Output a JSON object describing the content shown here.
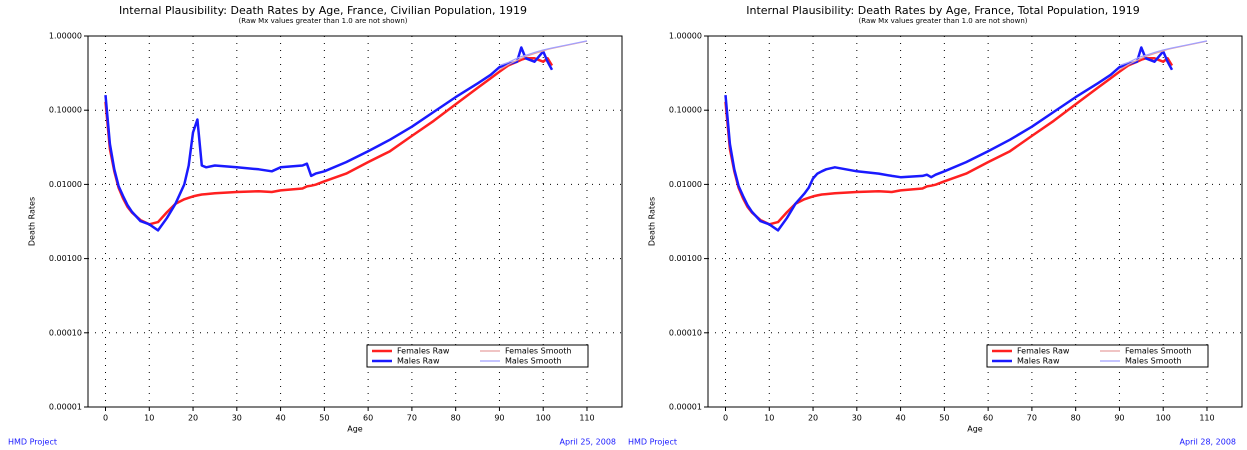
{
  "chart_data": [
    {
      "type": "line",
      "title": "Internal Plausibility: Death Rates by Age, France, Civilian Population, 1919",
      "subtitle": "(Raw Mx values greater than 1.0 are not shown)",
      "xlabel": "Age",
      "ylabel": "Death Rates",
      "footer_left": "HMD Project",
      "footer_right": "April 25, 2008",
      "log_y": true,
      "grid": true,
      "legend": "lower right",
      "xlim": [
        -4,
        118
      ],
      "xticks": [
        0,
        10,
        20,
        30,
        40,
        50,
        60,
        70,
        80,
        90,
        100,
        110
      ],
      "ylim": [
        1e-05,
        1
      ],
      "yticks": [
        {
          "value": 1e-05,
          "label": "0.00001"
        },
        {
          "value": 0.0001,
          "label": "0.00010"
        },
        {
          "value": 0.001,
          "label": "0.00100"
        },
        {
          "value": 0.01,
          "label": "0.01000"
        },
        {
          "value": 0.1,
          "label": "0.10000"
        },
        {
          "value": 1,
          "label": "1.00000"
        }
      ],
      "x": [
        0,
        1,
        2,
        3,
        4,
        5,
        6,
        8,
        10,
        12,
        14,
        16,
        18,
        19,
        20,
        21,
        22,
        23,
        25,
        30,
        35,
        38,
        40,
        45,
        46,
        47,
        48,
        50,
        55,
        60,
        65,
        70,
        75,
        80,
        85,
        88,
        90,
        92,
        94,
        95,
        96,
        98,
        100,
        101,
        102,
        105,
        110
      ],
      "series": [
        {
          "name": "Females Raw",
          "color": "#ff2020",
          "values": [
            0.13,
            0.03,
            0.015,
            0.009,
            0.0065,
            0.005,
            0.0042,
            0.0033,
            0.0029,
            0.0031,
            0.0042,
            0.0055,
            0.0063,
            0.0066,
            0.0069,
            0.0071,
            0.0073,
            0.0074,
            0.0076,
            0.0079,
            0.0081,
            0.0079,
            0.0083,
            0.0088,
            0.0094,
            0.0096,
            0.0099,
            0.011,
            0.014,
            0.02,
            0.028,
            0.045,
            0.072,
            0.12,
            0.2,
            0.27,
            0.33,
            0.4,
            0.45,
            0.48,
            0.5,
            0.5,
            0.45,
            0.5,
            0.4,
            null,
            null
          ]
        },
        {
          "name": "Males Raw",
          "color": "#1a1aff",
          "values": [
            0.16,
            0.035,
            0.016,
            0.0095,
            0.007,
            0.0053,
            0.0043,
            0.0032,
            0.0029,
            0.0024,
            0.0035,
            0.0055,
            0.01,
            0.018,
            0.05,
            0.075,
            0.018,
            0.017,
            0.018,
            0.017,
            0.016,
            0.015,
            0.017,
            0.018,
            0.019,
            0.013,
            0.014,
            0.015,
            0.02,
            0.028,
            0.04,
            0.06,
            0.095,
            0.15,
            0.23,
            0.3,
            0.38,
            0.42,
            0.45,
            0.7,
            0.5,
            0.45,
            0.62,
            0.45,
            0.35,
            null,
            null
          ]
        },
        {
          "name": "Females Smooth",
          "color": "#e8a0a0",
          "values": [
            null,
            null,
            null,
            null,
            null,
            null,
            null,
            null,
            null,
            null,
            null,
            null,
            null,
            null,
            null,
            null,
            null,
            null,
            null,
            null,
            null,
            null,
            null,
            null,
            null,
            null,
            null,
            null,
            null,
            null,
            null,
            null,
            null,
            null,
            null,
            null,
            0.35,
            0.41,
            0.47,
            0.5,
            0.53,
            0.58,
            0.63,
            0.66,
            0.68,
            0.74,
            0.85
          ]
        },
        {
          "name": "Males Smooth",
          "color": "#a0a0ff",
          "values": [
            null,
            null,
            null,
            null,
            null,
            null,
            null,
            null,
            null,
            null,
            null,
            null,
            null,
            null,
            null,
            null,
            null,
            null,
            null,
            null,
            null,
            null,
            null,
            null,
            null,
            null,
            null,
            null,
            null,
            null,
            null,
            null,
            null,
            null,
            null,
            null,
            0.4,
            0.44,
            0.5,
            0.53,
            0.55,
            0.6,
            0.65,
            0.67,
            0.69,
            0.75,
            0.86
          ]
        }
      ]
    },
    {
      "type": "line",
      "title": "Internal Plausibility: Death Rates by Age, France, Total Population, 1919",
      "subtitle": "(Raw Mx values greater than 1.0 are not shown)",
      "xlabel": "Age",
      "ylabel": "Death Rates",
      "footer_left": "HMD Project",
      "footer_right": "April 28, 2008",
      "log_y": true,
      "grid": true,
      "legend": "lower right",
      "xlim": [
        -4,
        118
      ],
      "xticks": [
        0,
        10,
        20,
        30,
        40,
        50,
        60,
        70,
        80,
        90,
        100,
        110
      ],
      "ylim": [
        1e-05,
        1
      ],
      "yticks": [
        {
          "value": 1e-05,
          "label": "0.00001"
        },
        {
          "value": 0.0001,
          "label": "0.00010"
        },
        {
          "value": 0.001,
          "label": "0.00100"
        },
        {
          "value": 0.01,
          "label": "0.01000"
        },
        {
          "value": 0.1,
          "label": "0.10000"
        },
        {
          "value": 1,
          "label": "1.00000"
        }
      ],
      "x": [
        0,
        1,
        2,
        3,
        4,
        5,
        6,
        8,
        10,
        12,
        14,
        16,
        18,
        19,
        20,
        21,
        22,
        23,
        25,
        30,
        35,
        38,
        40,
        45,
        46,
        47,
        48,
        50,
        55,
        60,
        65,
        70,
        75,
        80,
        85,
        88,
        90,
        92,
        94,
        95,
        96,
        98,
        100,
        101,
        102,
        105,
        110
      ],
      "series": [
        {
          "name": "Females Raw",
          "color": "#ff2020",
          "values": [
            0.13,
            0.03,
            0.015,
            0.009,
            0.0065,
            0.005,
            0.0042,
            0.0033,
            0.0029,
            0.0031,
            0.0042,
            0.0055,
            0.0063,
            0.0066,
            0.0069,
            0.0071,
            0.0073,
            0.0074,
            0.0076,
            0.0079,
            0.0081,
            0.0079,
            0.0083,
            0.0088,
            0.0094,
            0.0096,
            0.0099,
            0.011,
            0.014,
            0.02,
            0.028,
            0.045,
            0.072,
            0.12,
            0.2,
            0.27,
            0.33,
            0.4,
            0.45,
            0.48,
            0.5,
            0.5,
            0.45,
            0.5,
            0.4,
            null,
            null
          ]
        },
        {
          "name": "Males Raw",
          "color": "#1a1aff",
          "values": [
            0.16,
            0.035,
            0.016,
            0.0095,
            0.007,
            0.0053,
            0.0043,
            0.0032,
            0.0029,
            0.0024,
            0.0035,
            0.0055,
            0.0075,
            0.009,
            0.012,
            0.014,
            0.015,
            0.016,
            0.017,
            0.015,
            0.014,
            0.013,
            0.0125,
            0.013,
            0.0135,
            0.0125,
            0.0135,
            0.015,
            0.02,
            0.028,
            0.04,
            0.06,
            0.095,
            0.15,
            0.23,
            0.3,
            0.38,
            0.42,
            0.45,
            0.7,
            0.5,
            0.45,
            0.62,
            0.45,
            0.35,
            null,
            null
          ]
        },
        {
          "name": "Females Smooth",
          "color": "#e8a0a0",
          "values": [
            null,
            null,
            null,
            null,
            null,
            null,
            null,
            null,
            null,
            null,
            null,
            null,
            null,
            null,
            null,
            null,
            null,
            null,
            null,
            null,
            null,
            null,
            null,
            null,
            null,
            null,
            null,
            null,
            null,
            null,
            null,
            null,
            null,
            null,
            null,
            null,
            0.35,
            0.41,
            0.47,
            0.5,
            0.53,
            0.58,
            0.63,
            0.66,
            0.68,
            0.74,
            0.85
          ]
        },
        {
          "name": "Males Smooth",
          "color": "#a0a0ff",
          "values": [
            null,
            null,
            null,
            null,
            null,
            null,
            null,
            null,
            null,
            null,
            null,
            null,
            null,
            null,
            null,
            null,
            null,
            null,
            null,
            null,
            null,
            null,
            null,
            null,
            null,
            null,
            null,
            null,
            null,
            null,
            null,
            null,
            null,
            null,
            null,
            null,
            0.4,
            0.44,
            0.5,
            0.53,
            0.55,
            0.6,
            0.65,
            0.67,
            0.69,
            0.75,
            0.86
          ]
        }
      ]
    }
  ]
}
